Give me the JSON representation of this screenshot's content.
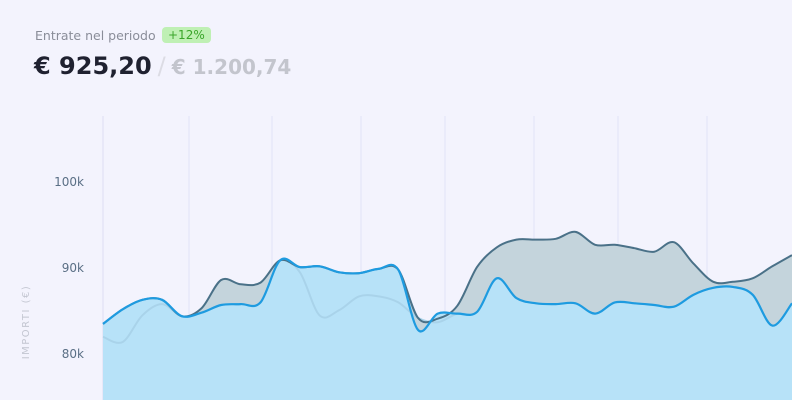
{
  "header": {
    "label": "Entrate nel periodo",
    "badge": "+12%",
    "amount": "€ 925,20",
    "separator": "/",
    "total": "€ 1.200,74"
  },
  "chart_data": {
    "type": "area",
    "ylabel": "IMPORTI (€)",
    "xlabel": "",
    "ylim": [
      76.7,
      107.6
    ],
    "y_unit": "k",
    "yticks": [
      {
        "value": 80,
        "label": "80k"
      },
      {
        "value": 90,
        "label": "90k"
      },
      {
        "value": 100,
        "label": "100k"
      }
    ],
    "grid": "vertical",
    "colors": {
      "current": "#1e9be0",
      "current_fill": "#b7e2f8",
      "previous": "#4a7188",
      "previous_fill": "#c4d4dc",
      "faint": "#a9d3ea"
    },
    "series": [
      {
        "key": "previous",
        "values": [
          83.5,
          85.2,
          86.3,
          86.3,
          84.4,
          85.3,
          88.6,
          88.1,
          88.3,
          90.9,
          90.1,
          90.2,
          89.5,
          89.4,
          89.9,
          89.8,
          84.2,
          84.1,
          85.6,
          90.1,
          92.4,
          93.3,
          93.3,
          93.4,
          94.2,
          92.7,
          92.7,
          92.3,
          91.9,
          93.0,
          90.5,
          88.4,
          88.4,
          88.8,
          90.2,
          91.5
        ]
      },
      {
        "key": "current",
        "values": [
          83.5,
          85.2,
          86.3,
          86.3,
          84.4,
          84.8,
          85.7,
          85.8,
          86.0,
          90.9,
          90.1,
          90.2,
          89.5,
          89.4,
          89.9,
          89.8,
          82.8,
          84.7,
          84.7,
          84.9,
          88.8,
          86.5,
          85.9,
          85.8,
          85.9,
          84.7,
          86.0,
          85.9,
          85.7,
          85.5,
          86.9,
          87.7,
          87.8,
          86.9,
          83.3,
          85.9
        ]
      },
      {
        "key": "faint",
        "values": [
          82.0,
          81.4,
          84.5,
          85.8,
          84.4,
          84.8,
          85.7,
          85.8,
          86.0,
          90.9,
          89.5,
          84.5,
          85.1,
          86.7,
          86.7,
          86.0,
          84.2,
          83.7,
          84.7,
          84.9,
          88.8,
          86.5,
          85.9,
          85.8,
          85.9,
          84.7,
          86.0,
          85.9,
          85.7,
          85.5,
          86.9,
          87.7,
          87.8,
          86.9,
          83.3,
          85.9
        ]
      }
    ]
  }
}
